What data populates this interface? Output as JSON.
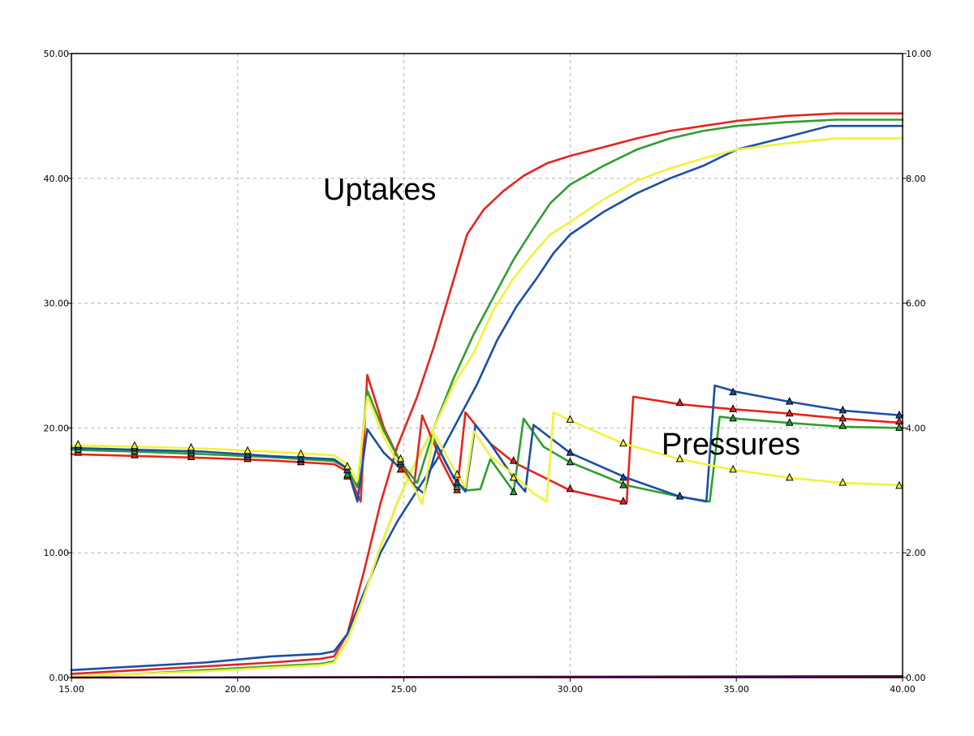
{
  "chart_data": {
    "type": "line",
    "title": "",
    "xlabel": "",
    "ylabel": "",
    "y2label": "",
    "xlim": [
      15,
      40
    ],
    "ylim": [
      0,
      50
    ],
    "y2lim": [
      0,
      10
    ],
    "grid": true,
    "legend": "none",
    "x_ticks": [
      "15.00",
      "20.00",
      "25.00",
      "30.00",
      "35.00",
      "40.00"
    ],
    "y_ticks": [
      "0.00",
      "10.00",
      "20.00",
      "30.00",
      "40.00",
      "50.00"
    ],
    "y2_ticks": [
      "0.00",
      "2.00",
      "4.00",
      "6.00",
      "8.00",
      "10.00"
    ],
    "annotations": [
      {
        "id": "uptakes",
        "text": "Uptakes"
      },
      {
        "id": "pressures",
        "text": "Pressures"
      }
    ],
    "colors": {
      "red": "#e8231c",
      "green": "#2f9e2f",
      "blue": "#1b4fa6",
      "yellow": "#f2f23a",
      "baseline": "#5a1050",
      "grid": "#b5b5b5"
    },
    "series": [
      {
        "group": "uptake",
        "color": "red",
        "axis": "left",
        "x": [
          15,
          17,
          19,
          21,
          22.5,
          22.9,
          23.3,
          23.8,
          24.3,
          24.8,
          25.4,
          25.9,
          26.4,
          26.9,
          27.4,
          28.0,
          28.6,
          29.3,
          30.0,
          31.0,
          32.0,
          33.0,
          34.0,
          35.0,
          36.5,
          38.0,
          40.0
        ],
        "y": [
          0.3,
          0.6,
          0.9,
          1.2,
          1.5,
          1.7,
          3.5,
          8.5,
          14.0,
          18.5,
          22.5,
          26.5,
          31.0,
          35.5,
          37.5,
          39.0,
          40.2,
          41.2,
          41.8,
          42.5,
          43.2,
          43.8,
          44.2,
          44.6,
          45.0,
          45.2,
          45.2
        ]
      },
      {
        "group": "uptake",
        "color": "green",
        "axis": "left",
        "x": [
          15,
          17,
          19,
          21,
          22.5,
          22.9,
          23.3,
          23.8,
          24.3,
          24.8,
          25.3,
          25.9,
          26.5,
          27.1,
          27.7,
          28.3,
          28.9,
          29.4,
          30.0,
          31.0,
          32.0,
          33.0,
          34.0,
          35.0,
          36.5,
          38.0,
          40.0
        ],
        "y": [
          0.1,
          0.3,
          0.6,
          0.9,
          1.1,
          1.3,
          3.0,
          6.5,
          10.5,
          14.0,
          17.0,
          20.0,
          24.0,
          27.5,
          30.5,
          33.5,
          36.0,
          38.0,
          39.5,
          41.0,
          42.3,
          43.2,
          43.8,
          44.2,
          44.5,
          44.7,
          44.7
        ]
      },
      {
        "group": "uptake",
        "color": "blue",
        "axis": "left",
        "x": [
          15,
          17,
          19,
          21,
          22.5,
          22.9,
          23.3,
          23.8,
          24.3,
          24.8,
          25.4,
          26.0,
          26.6,
          27.2,
          27.8,
          28.4,
          29.0,
          29.5,
          30.0,
          31.0,
          32.0,
          33.0,
          34.0,
          35.0,
          36.5,
          37.8,
          40.0
        ],
        "y": [
          0.6,
          0.9,
          1.2,
          1.7,
          1.9,
          2.1,
          3.5,
          6.8,
          10.0,
          12.5,
          15.0,
          17.5,
          20.5,
          23.5,
          27.0,
          29.8,
          32.0,
          34.0,
          35.5,
          37.3,
          38.8,
          40.0,
          41.0,
          42.3,
          43.3,
          44.2,
          44.2
        ]
      },
      {
        "group": "uptake",
        "color": "yellow",
        "axis": "left",
        "x": [
          15,
          17,
          19,
          21,
          22.5,
          22.9,
          23.3,
          23.8,
          24.3,
          24.8,
          25.3,
          25.9,
          26.5,
          27.1,
          27.7,
          28.3,
          28.9,
          29.4,
          30.0,
          31.0,
          32.0,
          33.0,
          34.0,
          35.0,
          36.5,
          38.0,
          40.0
        ],
        "y": [
          0.1,
          0.3,
          0.5,
          0.8,
          1.0,
          1.2,
          3.0,
          6.5,
          10.5,
          14.0,
          17.0,
          20.0,
          23.5,
          26.0,
          29.5,
          32.0,
          34.0,
          35.5,
          36.5,
          38.3,
          39.8,
          40.8,
          41.6,
          42.3,
          42.8,
          43.2,
          43.2
        ]
      },
      {
        "group": "pressure",
        "color": "red",
        "axis": "right",
        "x": [
          15,
          17,
          19,
          21,
          22.9,
          23.3,
          23.7,
          23.9,
          24.4,
          24.9,
          25.3,
          25.55,
          26.1,
          26.6,
          26.85,
          27.6,
          28.3,
          30.0,
          31.7,
          31.9,
          33.3,
          34.9,
          36.6,
          38.2,
          40.0
        ],
        "y": [
          3.58,
          3.55,
          3.52,
          3.48,
          3.42,
          3.3,
          2.82,
          4.85,
          4.0,
          3.45,
          3.05,
          4.2,
          3.5,
          2.98,
          4.25,
          3.75,
          3.45,
          3.0,
          2.8,
          4.5,
          4.38,
          4.3,
          4.23,
          4.15,
          4.08
        ]
      },
      {
        "group": "pressure",
        "color": "green",
        "axis": "right",
        "x": [
          15,
          17,
          19,
          21,
          22.9,
          23.3,
          23.6,
          23.9,
          24.4,
          24.9,
          25.4,
          25.85,
          26.3,
          26.6,
          26.9,
          27.3,
          27.6,
          28.3,
          28.6,
          29.2,
          30.0,
          31.7,
          33.3,
          34.2,
          34.5,
          35.0,
          36.6,
          38.2,
          40.0
        ],
        "y": [
          3.65,
          3.62,
          3.58,
          3.53,
          3.47,
          3.35,
          3.05,
          4.6,
          3.95,
          3.45,
          3.12,
          3.88,
          3.4,
          3.12,
          3.0,
          3.02,
          3.5,
          2.98,
          4.15,
          3.7,
          3.45,
          3.08,
          2.9,
          2.82,
          4.18,
          4.15,
          4.08,
          4.02,
          4.0
        ]
      },
      {
        "group": "pressure",
        "color": "blue",
        "axis": "right",
        "x": [
          15,
          17,
          19,
          21,
          22.9,
          23.3,
          23.6,
          23.9,
          24.4,
          24.9,
          25.3,
          25.6,
          26.0,
          26.5,
          26.85,
          27.15,
          27.6,
          28.3,
          28.65,
          28.9,
          30.0,
          31.7,
          33.3,
          34.1,
          34.35,
          35.0,
          36.6,
          38.2,
          40.0
        ],
        "y": [
          3.68,
          3.65,
          3.62,
          3.55,
          3.5,
          3.35,
          2.82,
          3.98,
          3.6,
          3.35,
          3.08,
          2.95,
          3.72,
          3.2,
          2.98,
          4.05,
          3.75,
          3.2,
          2.98,
          4.05,
          3.6,
          3.2,
          2.9,
          2.82,
          4.68,
          4.58,
          4.42,
          4.28,
          4.2
        ]
      },
      {
        "group": "pressure",
        "color": "yellow",
        "axis": "right",
        "x": [
          15,
          17,
          19,
          21,
          22.9,
          23.3,
          23.6,
          23.9,
          24.4,
          24.9,
          25.3,
          25.55,
          25.9,
          26.5,
          26.85,
          27.1,
          27.6,
          28.3,
          28.9,
          29.3,
          29.5,
          30.0,
          31.6,
          33.3,
          34.9,
          36.6,
          38.2,
          40.0
        ],
        "y": [
          3.72,
          3.7,
          3.67,
          3.62,
          3.56,
          3.42,
          3.15,
          4.5,
          3.85,
          3.35,
          3.05,
          2.78,
          3.92,
          3.35,
          3.05,
          3.95,
          3.55,
          3.25,
          2.95,
          2.82,
          4.25,
          4.12,
          3.75,
          3.5,
          3.33,
          3.2,
          3.12,
          3.08
        ]
      },
      {
        "group": "baseline",
        "color": "baseline",
        "axis": "left",
        "x": [
          15,
          40
        ],
        "y": [
          0.0,
          0.12
        ]
      }
    ],
    "markers": {
      "red": {
        "x": [
          15.2,
          16.9,
          18.6,
          20.3,
          21.9,
          23.3,
          24.9,
          26.6,
          28.3,
          30.0,
          31.6,
          33.3,
          34.9,
          36.6,
          38.2,
          39.9
        ],
        "y": [
          3.6,
          3.56,
          3.53,
          3.5,
          3.45,
          3.22,
          3.33,
          3.0,
          3.47,
          3.02,
          2.82,
          4.4,
          4.3,
          4.23,
          4.15,
          4.1
        ]
      },
      "green": {
        "x": [
          15.2,
          16.9,
          18.6,
          20.3,
          21.9,
          23.3,
          24.9,
          26.6,
          28.3,
          30.0,
          31.6,
          33.3,
          34.9,
          36.6,
          38.2,
          39.9
        ],
        "y": [
          3.65,
          3.62,
          3.59,
          3.54,
          3.49,
          3.25,
          3.42,
          3.05,
          2.97,
          3.45,
          3.08,
          2.9,
          4.15,
          4.08,
          4.03,
          4.0
        ]
      },
      "blue": {
        "x": [
          15.2,
          16.9,
          18.6,
          20.3,
          21.9,
          23.3,
          24.9,
          26.6,
          28.3,
          30.0,
          31.6,
          33.3,
          34.9,
          36.6,
          38.2,
          39.9
        ],
        "y": [
          3.7,
          3.67,
          3.63,
          3.57,
          3.5,
          3.32,
          3.45,
          3.12,
          3.2,
          3.6,
          3.2,
          2.9,
          4.57,
          4.42,
          4.28,
          4.2
        ]
      },
      "yellow": {
        "x": [
          15.2,
          16.9,
          18.6,
          20.3,
          21.9,
          23.3,
          24.9,
          26.6,
          28.3,
          30.0,
          31.6,
          33.3,
          34.9,
          36.6,
          38.2,
          39.9
        ],
        "y": [
          3.73,
          3.71,
          3.68,
          3.63,
          3.58,
          3.38,
          3.5,
          3.25,
          3.2,
          4.13,
          3.75,
          3.5,
          3.33,
          3.2,
          3.12,
          3.07
        ]
      }
    }
  }
}
